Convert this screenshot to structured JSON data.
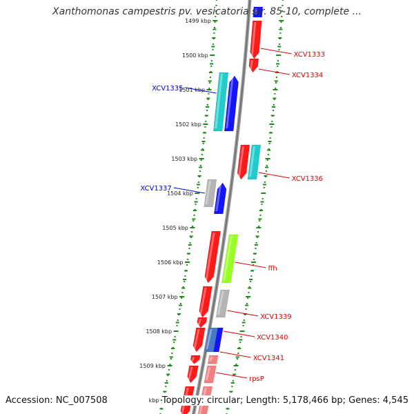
{
  "title": "Xanthomonas campestris pv. vesicatoria str. 85-10, complete ...",
  "footer": {
    "accession": "Accession: NC_007508",
    "summary": "Topology: circular; Length: 5,178,466 bp; Genes: 4,545"
  },
  "colors": {
    "red": "#ff1a1a",
    "blue": "#1414ff",
    "cyan": "#22cccc",
    "gray": "#b4b4b4",
    "green": "#99ff22",
    "pink": "#f08080",
    "steel": "#4a78c8",
    "tick": "#1a8a1a",
    "label_red": "#dd0000",
    "label_blue": "#0000cc"
  },
  "ticks": [
    {
      "label": "1499 kbp",
      "pos": 1499
    },
    {
      "label": "1500 kbp",
      "pos": 1500
    },
    {
      "label": "1501 kbp",
      "pos": 1501
    },
    {
      "label": "1502 kbp",
      "pos": 1502
    },
    {
      "label": "1503 kbp",
      "pos": 1503
    },
    {
      "label": "1504 kbp",
      "pos": 1504
    },
    {
      "label": "1505 kbp",
      "pos": 1505
    },
    {
      "label": "1506 kbp",
      "pos": 1506
    },
    {
      "label": "1507 kbp",
      "pos": 1507
    },
    {
      "label": "1508 kbp",
      "pos": 1508
    },
    {
      "label": "1509 kbp",
      "pos": 1509
    },
    {
      "label": "kbp",
      "pos": 1510
    }
  ],
  "features": [
    {
      "track": 1,
      "start": 1498.6,
      "end": 1498.9,
      "color": "blue",
      "dir": "none"
    },
    {
      "track": 1,
      "start": 1499.0,
      "end": 1500.1,
      "color": "red",
      "dir": "rev"
    },
    {
      "track": 1,
      "start": 1500.1,
      "end": 1500.5,
      "color": "red",
      "dir": "rev"
    },
    {
      "track": -2,
      "start": 1500.5,
      "end": 1502.2,
      "color": "cyan",
      "dir": "none"
    },
    {
      "track": -1,
      "start": 1500.6,
      "end": 1502.2,
      "color": "blue",
      "dir": "fwd"
    },
    {
      "track": 1,
      "start": 1502.6,
      "end": 1503.6,
      "color": "red",
      "dir": "rev"
    },
    {
      "track": 2,
      "start": 1502.6,
      "end": 1503.6,
      "color": "cyan",
      "dir": "none"
    },
    {
      "track": -2,
      "start": 1503.6,
      "end": 1504.4,
      "color": "gray",
      "dir": "none"
    },
    {
      "track": -1,
      "start": 1503.7,
      "end": 1504.6,
      "color": "blue",
      "dir": "fwd"
    },
    {
      "track": -1,
      "start": 1505.1,
      "end": 1506.6,
      "color": "red",
      "dir": "rev"
    },
    {
      "track": 1,
      "start": 1505.2,
      "end": 1506.6,
      "color": "green",
      "dir": "none"
    },
    {
      "track": -1,
      "start": 1506.7,
      "end": 1507.6,
      "color": "red",
      "dir": "rev"
    },
    {
      "track": 1,
      "start": 1506.8,
      "end": 1507.6,
      "color": "gray",
      "dir": "none"
    },
    {
      "track": -1,
      "start": 1507.6,
      "end": 1507.9,
      "color": "red",
      "dir": "rev"
    },
    {
      "track": -1,
      "start": 1507.9,
      "end": 1508.6,
      "color": "red",
      "dir": "rev"
    },
    {
      "track": 1,
      "start": 1507.9,
      "end": 1508.6,
      "color": "blue",
      "dir": "none"
    },
    {
      "track": 0.55,
      "start": 1507.9,
      "end": 1508.6,
      "color": "steel",
      "dir": "none"
    },
    {
      "track": -1,
      "start": 1508.7,
      "end": 1508.95,
      "color": "red",
      "dir": "rev"
    },
    {
      "track": 1,
      "start": 1508.7,
      "end": 1508.95,
      "color": "pink",
      "dir": "none"
    },
    {
      "track": -1,
      "start": 1509.0,
      "end": 1509.5,
      "color": "red",
      "dir": "rev"
    },
    {
      "track": 1,
      "start": 1509.0,
      "end": 1509.5,
      "color": "pink",
      "dir": "none"
    },
    {
      "track": -1,
      "start": 1509.6,
      "end": 1510.5,
      "color": "red",
      "dir": "rev"
    },
    {
      "track": 1,
      "start": 1509.6,
      "end": 1510.5,
      "color": "pink",
      "dir": "none"
    }
  ],
  "labels": [
    {
      "text": "XCV1333",
      "side": "right",
      "pos": 1499.8,
      "track": 1
    },
    {
      "text": "XCV1334",
      "side": "right",
      "pos": 1500.4,
      "track": 1
    },
    {
      "text": "XCV1335",
      "side": "left",
      "pos": 1501.1,
      "track": -2
    },
    {
      "text": "XCV1336",
      "side": "right",
      "pos": 1503.4,
      "track": 2
    },
    {
      "text": "XCV1337",
      "side": "left",
      "pos": 1504.0,
      "track": -2
    },
    {
      "text": "ffh",
      "side": "right",
      "pos": 1506.0,
      "track": 1
    },
    {
      "text": "XCV1339",
      "side": "right",
      "pos": 1507.4,
      "track": 1
    },
    {
      "text": "XCV1340",
      "side": "right",
      "pos": 1508.0,
      "track": 1
    },
    {
      "text": "XCV1341",
      "side": "right",
      "pos": 1508.6,
      "track": 1
    },
    {
      "text": "rpsP",
      "side": "right",
      "pos": 1509.2,
      "track": 1
    }
  ]
}
